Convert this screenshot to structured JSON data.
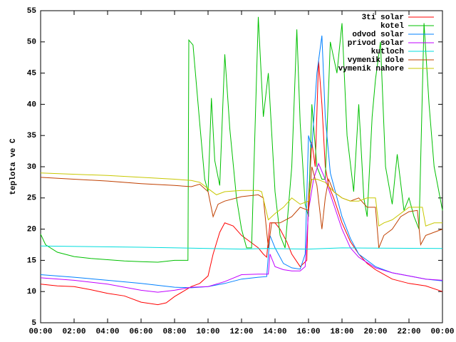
{
  "chart_data": {
    "type": "line",
    "ylabel": "teplota ve C",
    "xlim": [
      0,
      24
    ],
    "ylim": [
      5,
      55
    ],
    "xticks": [
      {
        "value": 0,
        "label": "00:00"
      },
      {
        "value": 2,
        "label": "02:00"
      },
      {
        "value": 4,
        "label": "04:00"
      },
      {
        "value": 6,
        "label": "06:00"
      },
      {
        "value": 8,
        "label": "08:00"
      },
      {
        "value": 10,
        "label": "10:00"
      },
      {
        "value": 12,
        "label": "12:00"
      },
      {
        "value": 14,
        "label": "14:00"
      },
      {
        "value": 16,
        "label": "16:00"
      },
      {
        "value": 18,
        "label": "18:00"
      },
      {
        "value": 20,
        "label": "20:00"
      },
      {
        "value": 22,
        "label": "22:00"
      },
      {
        "value": 24,
        "label": "00:00"
      }
    ],
    "yticks": [
      5,
      10,
      15,
      20,
      25,
      30,
      35,
      40,
      45,
      50,
      55
    ],
    "legend": "top-right",
    "series": [
      {
        "name": "3ti solar",
        "color": "#ff0000",
        "x": [
          0,
          1,
          2,
          3,
          4,
          5,
          6,
          7,
          7.5,
          8,
          8.5,
          9,
          9.5,
          10,
          10.3,
          10.7,
          11,
          11.5,
          12,
          12.5,
          13,
          13.3,
          13.5,
          13.7,
          14,
          14.3,
          14.7,
          15,
          15.5,
          15.9,
          16,
          16.2,
          16.4,
          16.6,
          16.8,
          17,
          17.2,
          17.5,
          18,
          18.5,
          19,
          19.5,
          20,
          21,
          22,
          23,
          24
        ],
        "values": [
          11.2,
          10.9,
          10.8,
          10.3,
          9.7,
          9.3,
          8.3,
          7.9,
          8.2,
          9.2,
          10,
          10.8,
          11.3,
          12.5,
          16,
          19.5,
          21,
          20.5,
          19,
          18,
          17,
          16,
          15.5,
          21,
          21,
          20,
          18,
          16,
          14,
          15,
          25,
          34,
          30,
          47,
          40,
          30,
          27,
          25,
          21,
          18,
          16,
          14.5,
          13.5,
          12,
          11.3,
          10.9,
          10
        ]
      },
      {
        "name": "kotel",
        "color": "#00c000",
        "x": [
          0,
          0.3,
          1,
          2,
          3,
          4,
          5,
          6,
          7,
          8,
          8.8,
          8.85,
          9.1,
          9.5,
          9.8,
          10,
          10.2,
          10.4,
          10.7,
          11,
          11.3,
          11.7,
          12,
          12.3,
          12.6,
          13,
          13.3,
          13.6,
          14,
          14.3,
          14.6,
          15,
          15.3,
          15.5,
          15.8,
          16,
          16.2,
          16.5,
          16.8,
          17,
          17.3,
          17.7,
          18,
          18.3,
          18.7,
          19,
          19.3,
          19.5,
          19.8,
          20,
          20.3,
          20.6,
          21,
          21.3,
          21.7,
          22,
          22.3,
          22.6,
          22.9,
          23.2,
          23.5,
          24
        ],
        "values": [
          19.2,
          17.5,
          16.3,
          15.6,
          15.3,
          15.1,
          14.9,
          14.8,
          14.7,
          15,
          15,
          50.3,
          49.5,
          37,
          28,
          26,
          41,
          31,
          27,
          48,
          36,
          25,
          20,
          17,
          17,
          54,
          38,
          45,
          26,
          19,
          17,
          30,
          52,
          37,
          24,
          22,
          40,
          30,
          28,
          28,
          50,
          45,
          53,
          35,
          26,
          40,
          25,
          22,
          38,
          44,
          50,
          30,
          24,
          32,
          23,
          25,
          22,
          20,
          53,
          40,
          30,
          23
        ]
      },
      {
        "name": "odvod solar",
        "color": "#0080ff",
        "x": [
          0,
          2,
          4,
          6,
          8,
          9,
          10,
          11,
          12,
          13,
          13.5,
          13.7,
          14,
          14.5,
          15,
          15.5,
          15.8,
          16,
          16.2,
          16.5,
          16.8,
          17,
          17.3,
          17.5,
          18,
          18.5,
          19,
          20,
          21,
          22,
          23,
          24
        ],
        "values": [
          12.7,
          12.3,
          11.8,
          11.3,
          10.7,
          10.6,
          10.8,
          11.3,
          12,
          12.3,
          12.4,
          19,
          17,
          14.5,
          13.8,
          13.6,
          16,
          35,
          33,
          45,
          51,
          38,
          29,
          27,
          22,
          18.5,
          16,
          14,
          13,
          12.5,
          12,
          11.7
        ]
      },
      {
        "name": "privod solar",
        "color": "#c000ff",
        "x": [
          0,
          2,
          4,
          6,
          7,
          8,
          9,
          10,
          11,
          12,
          13,
          13.6,
          13.7,
          14,
          14.5,
          15,
          15.5,
          15.8,
          16,
          16.3,
          16.6,
          17,
          17.5,
          18,
          18.5,
          19,
          20,
          21,
          22,
          23,
          24
        ],
        "values": [
          12.2,
          11.8,
          11.2,
          10.2,
          9.9,
          10.2,
          10.7,
          10.8,
          11.6,
          12.7,
          12.8,
          12.8,
          16,
          14,
          13.5,
          13.3,
          13.3,
          14,
          23,
          28,
          30.5,
          28,
          24,
          20,
          17,
          15.5,
          13.8,
          13,
          12.5,
          12,
          11.8
        ]
      },
      {
        "name": "kutloch",
        "color": "#00dddd",
        "x": [
          0,
          6,
          12,
          13.5,
          16,
          18,
          24
        ],
        "values": [
          17.3,
          17.1,
          16.8,
          16.9,
          16.8,
          17,
          16.9
        ]
      },
      {
        "name": "vymenik dole",
        "color": "#c04000",
        "x": [
          0,
          4,
          6,
          8,
          9,
          9.5,
          10,
          10.3,
          10.6,
          11,
          12,
          13,
          13.3,
          13.6,
          13.8,
          14.3,
          15,
          15.5,
          16,
          16.2,
          16.5,
          16.8,
          17,
          17.2,
          17.5,
          18,
          18.5,
          19,
          19.5,
          20,
          20.2,
          20.5,
          21,
          21.5,
          22,
          22.5,
          22.7,
          23,
          24
        ],
        "values": [
          28.3,
          27.7,
          27.3,
          27,
          26.8,
          27.2,
          26,
          22,
          24,
          24.5,
          25.2,
          25.5,
          25,
          17,
          21,
          21,
          22,
          23.5,
          23,
          30,
          27,
          20,
          25,
          28,
          26,
          25,
          24.5,
          25,
          23.5,
          23.5,
          17,
          19,
          20,
          22,
          22.8,
          23,
          17.5,
          19,
          20
        ]
      },
      {
        "name": "vymenik nahore",
        "color": "#c8c800",
        "x": [
          0,
          4,
          8,
          9,
          9.5,
          10,
          10.5,
          11,
          12,
          13,
          13.2,
          13.6,
          14,
          14.5,
          15,
          15.5,
          16,
          16.2,
          16.5,
          17,
          17.5,
          18,
          18.5,
          19,
          19.5,
          20,
          20.2,
          20.5,
          21,
          22,
          22.8,
          23,
          23.5,
          24
        ],
        "values": [
          29,
          28.6,
          28,
          27.8,
          27.5,
          26.5,
          25.5,
          26,
          26.2,
          26.2,
          26,
          21.5,
          22.5,
          23.5,
          25,
          24,
          24.5,
          28,
          28,
          27.5,
          26,
          25,
          24.5,
          24.5,
          25,
          25,
          20.5,
          21,
          21.5,
          23.5,
          23.5,
          20.5,
          21,
          21
        ]
      }
    ]
  }
}
